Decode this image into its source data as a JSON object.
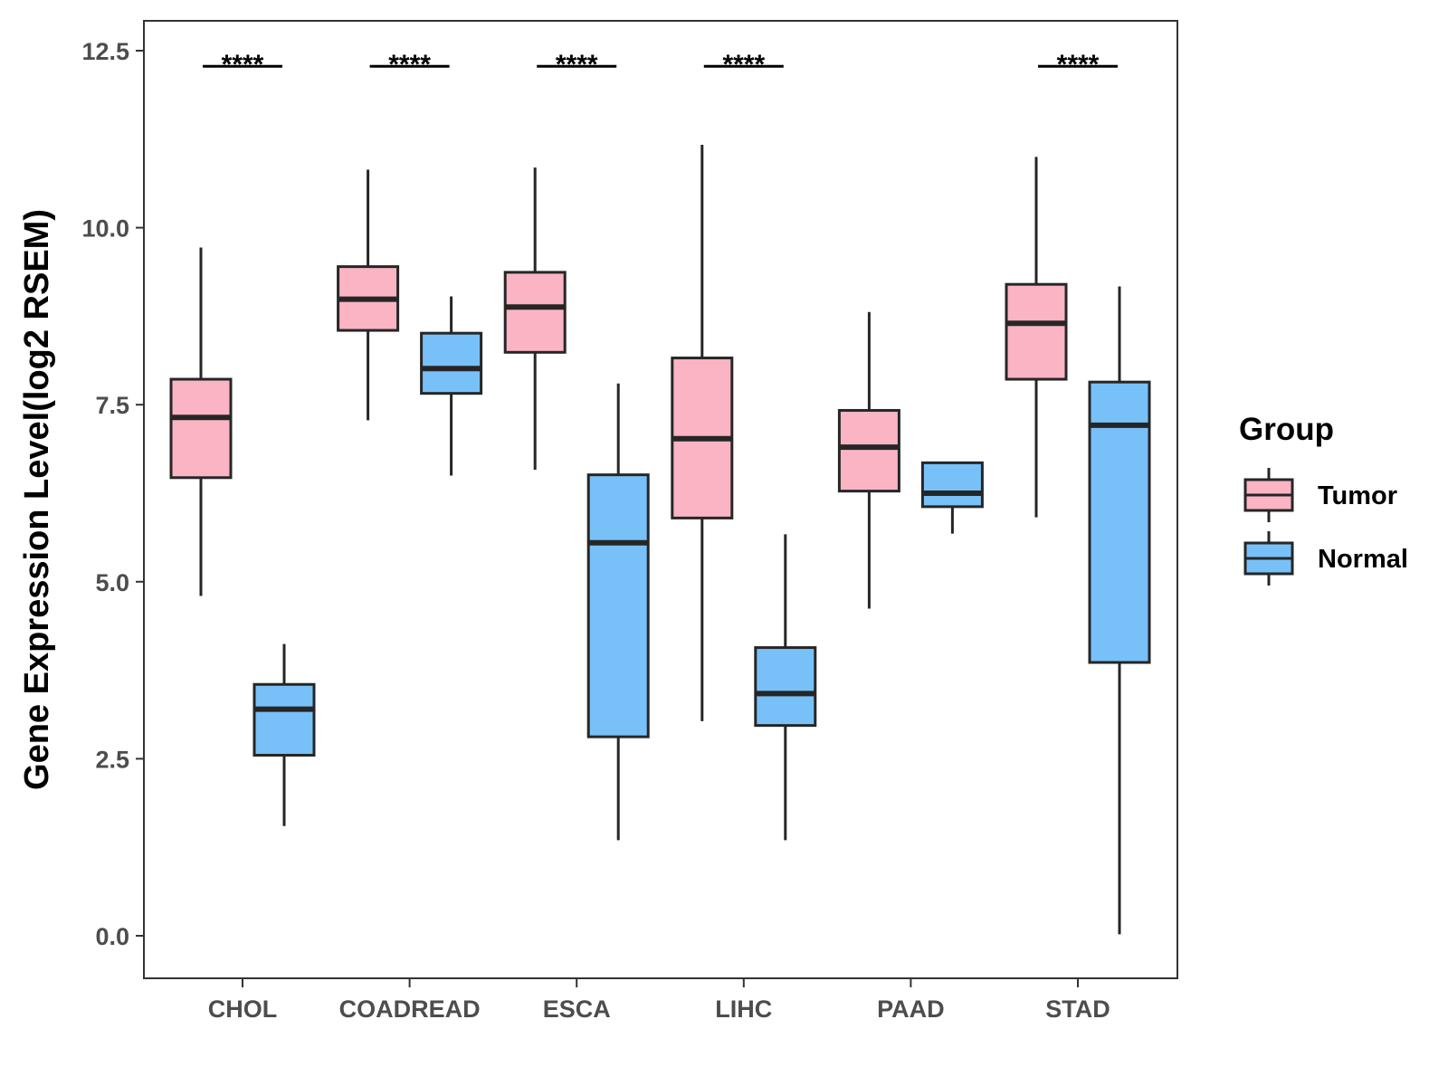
{
  "chart_data": {
    "type": "boxplot",
    "title": "",
    "xlabel": "",
    "ylabel": "Gene Expression Level(log2 RSEM)",
    "ylim": [
      -0.6,
      13.0
    ],
    "yticks": [
      0.0,
      2.5,
      5.0,
      7.5,
      10.0,
      12.5
    ],
    "ytick_labels": [
      "0.0",
      "2.5",
      "5.0",
      "7.5",
      "10.0",
      "12.5"
    ],
    "grid": false,
    "categories": [
      "CHOL",
      "COADREAD",
      "ESCA",
      "LIHC",
      "PAAD",
      "STAD"
    ],
    "series": [
      {
        "name": "Tumor",
        "color": "#fbb4c4",
        "boxes": [
          {
            "min": 4.8,
            "q1": 6.47,
            "median": 7.32,
            "q3": 7.86,
            "max": 9.72
          },
          {
            "min": 7.28,
            "q1": 8.55,
            "median": 8.99,
            "q3": 9.45,
            "max": 10.82
          },
          {
            "min": 6.58,
            "q1": 8.24,
            "median": 8.88,
            "q3": 9.37,
            "max": 10.85
          },
          {
            "min": 3.03,
            "q1": 5.9,
            "median": 7.02,
            "q3": 8.16,
            "max": 11.17
          },
          {
            "min": 4.62,
            "q1": 6.28,
            "median": 6.9,
            "q3": 7.42,
            "max": 8.81
          },
          {
            "min": 5.91,
            "q1": 7.86,
            "median": 8.65,
            "q3": 9.2,
            "max": 11.0
          }
        ]
      },
      {
        "name": "Normal",
        "color": "#78c1f8",
        "boxes": [
          {
            "min": 1.55,
            "q1": 2.55,
            "median": 3.2,
            "q3": 3.55,
            "max": 4.12
          },
          {
            "min": 6.5,
            "q1": 7.66,
            "median": 8.01,
            "q3": 8.51,
            "max": 9.03
          },
          {
            "min": 1.35,
            "q1": 2.81,
            "median": 5.55,
            "q3": 6.51,
            "max": 7.8
          },
          {
            "min": 1.35,
            "q1": 2.97,
            "median": 3.42,
            "q3": 4.07,
            "max": 5.67
          },
          {
            "min": 5.68,
            "q1": 6.06,
            "median": 6.25,
            "q3": 6.68,
            "max": 6.68
          },
          {
            "min": 0.02,
            "q1": 3.86,
            "median": 7.21,
            "q3": 7.82,
            "max": 9.17
          }
        ]
      }
    ],
    "significance": [
      {
        "category": "CHOL",
        "label": "****"
      },
      {
        "category": "COADREAD",
        "label": "****"
      },
      {
        "category": "ESCA",
        "label": "****"
      },
      {
        "category": "LIHC",
        "label": "****"
      },
      {
        "category": "STAD",
        "label": "****"
      }
    ],
    "significance_level": 12.28,
    "legend": {
      "title": "Group",
      "placement": "right",
      "items": [
        "Tumor",
        "Normal"
      ]
    },
    "colors": {
      "tumor": "#fbb4c4",
      "normal": "#78c1f8",
      "stroke": "#262626",
      "axis": "#333333"
    }
  }
}
